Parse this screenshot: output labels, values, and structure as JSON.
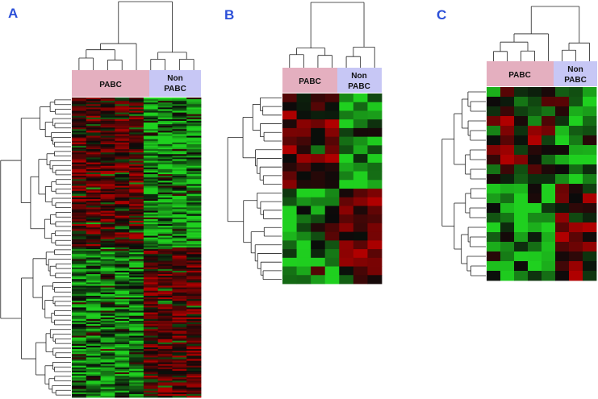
{
  "colors": {
    "pabc_header": "#e4afbf",
    "non_pabc_header": "#c7c7f5",
    "tree_line": "#222222",
    "panel_letter": "#2b4fd8",
    "heat_high": "#b00000",
    "heat_mid": "#0a0a0a",
    "heat_low": "#1fd01f"
  },
  "panels": [
    {
      "letter": "A",
      "group_labels": {
        "pabc": "PABC",
        "non_pabc_line1": "Non",
        "non_pabc_line2": "PABC"
      },
      "matrix": {
        "rows": 180,
        "cols": 9,
        "pabc_cols": 5
      },
      "gene_clusters": [
        {
          "pattern": "PABC up, Non-PABC down",
          "pabc": 0.35,
          "non_pabc": -0.65
        },
        {
          "pattern": "PABC down, Non-PABC up",
          "pabc": -0.55,
          "non_pabc": 0.4
        }
      ]
    },
    {
      "letter": "B",
      "group_labels": {
        "pabc": "PABC",
        "non_pabc_line1": "Non",
        "non_pabc_line2": "PABC"
      },
      "matrix": {
        "rows": 22,
        "cols": 7,
        "pabc_cols": 4
      },
      "gene_clusters": [
        {
          "pattern": "PABC up, Non-PABC down",
          "pabc": 0.3,
          "non_pabc": -0.6
        },
        {
          "pattern": "PABC down, Non-PABC up",
          "pabc": -0.55,
          "non_pabc": 0.45
        }
      ]
    },
    {
      "letter": "C",
      "group_labels": {
        "pabc": "PABC",
        "non_pabc_line1": "Non",
        "non_pabc_line2": "PABC"
      },
      "matrix": {
        "rows": 20,
        "cols": 8,
        "pabc_cols": 5
      },
      "gene_clusters": [
        {
          "pattern": "PABC up, Non-PABC down",
          "pabc": 0.25,
          "non_pabc": -0.55
        },
        {
          "pattern": "PABC down, Non-PABC up",
          "pabc": -0.6,
          "non_pabc": 0.4
        }
      ]
    }
  ]
}
